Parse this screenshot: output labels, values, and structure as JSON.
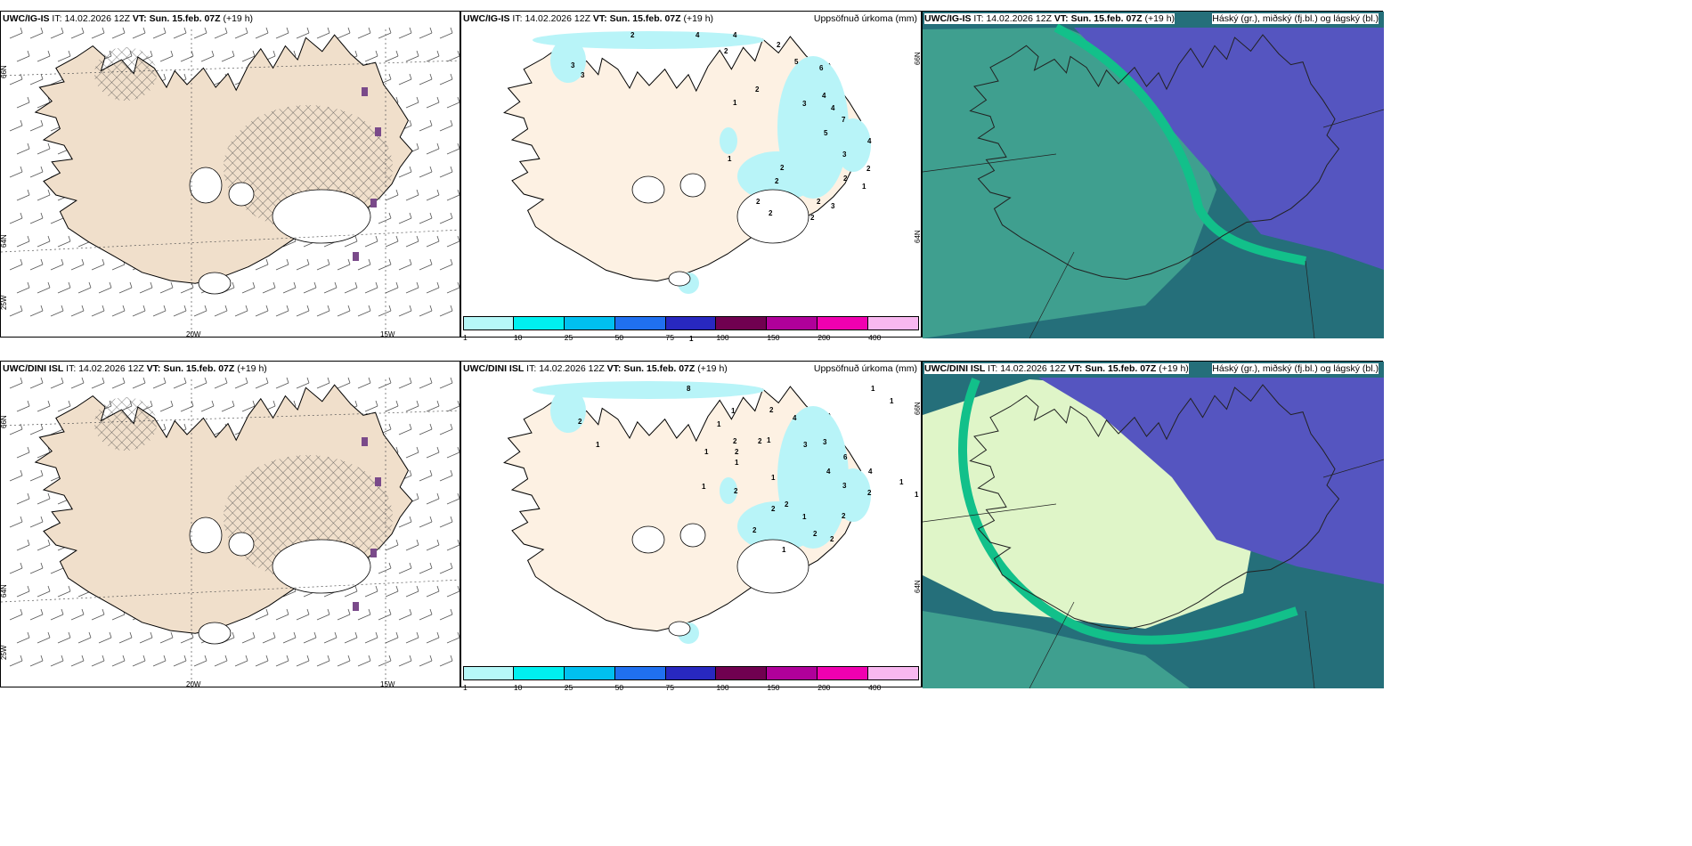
{
  "colors": {
    "land": "#f0dfcb",
    "land_light": "#fdf1e3",
    "snow_cyan": "#b8f4f8",
    "sea_teal": "#3f9f8f",
    "sea_dark": "#256f7a",
    "cloud_purple": "#5555c0",
    "cloud_green": "#12c08a",
    "cloud_light": "#dff5c8"
  },
  "rows": [
    {
      "model": "UWC/IG-IS",
      "it_label": "IT:",
      "it": "14.02.2026 12Z",
      "vt_label": "VT:",
      "vt": "Sun. 15.feb. 07Z",
      "lead": "(+19 h)",
      "precip_title": "Uppsöfnuð úrkoma (mm)",
      "cloud_title": "Háský (gr.), miðský (fj.bl.) og lágský (bl.)",
      "wind_lon_labels": [
        "20W",
        "15W"
      ],
      "wind_lat_labels": [
        "66N",
        "64N",
        "25W"
      ],
      "precip_lat_labels": [
        "66N",
        "64N"
      ],
      "precip_numbers": [
        {
          "t": "2",
          "x": 190,
          "y": 29
        },
        {
          "t": "4",
          "x": 263,
          "y": 29
        },
        {
          "t": "4",
          "x": 305,
          "y": 29
        },
        {
          "t": "2",
          "x": 354,
          "y": 40
        },
        {
          "t": "2",
          "x": 295,
          "y": 47
        },
        {
          "t": "5",
          "x": 374,
          "y": 59
        },
        {
          "t": "6",
          "x": 402,
          "y": 66
        },
        {
          "t": "3",
          "x": 123,
          "y": 63
        },
        {
          "t": "3",
          "x": 134,
          "y": 74
        },
        {
          "t": "1",
          "x": 305,
          "y": 105
        },
        {
          "t": "2",
          "x": 330,
          "y": 90
        },
        {
          "t": "3",
          "x": 383,
          "y": 106
        },
        {
          "t": "4",
          "x": 405,
          "y": 97
        },
        {
          "t": "4",
          "x": 415,
          "y": 111
        },
        {
          "t": "7",
          "x": 427,
          "y": 124
        },
        {
          "t": "5",
          "x": 407,
          "y": 139
        },
        {
          "t": "3",
          "x": 428,
          "y": 163
        },
        {
          "t": "4",
          "x": 456,
          "y": 148
        },
        {
          "t": "2",
          "x": 455,
          "y": 179
        },
        {
          "t": "2",
          "x": 429,
          "y": 190
        },
        {
          "t": "1",
          "x": 450,
          "y": 199
        },
        {
          "t": "1",
          "x": 299,
          "y": 168
        },
        {
          "t": "2",
          "x": 358,
          "y": 178
        },
        {
          "t": "2",
          "x": 352,
          "y": 193
        },
        {
          "t": "2",
          "x": 331,
          "y": 216
        },
        {
          "t": "2",
          "x": 345,
          "y": 229
        },
        {
          "t": "2",
          "x": 399,
          "y": 216
        },
        {
          "t": "3",
          "x": 415,
          "y": 221
        },
        {
          "t": "2",
          "x": 392,
          "y": 234
        },
        {
          "t": "1",
          "x": 256,
          "y": 370
        }
      ]
    },
    {
      "model": "UWC/DINI ISL",
      "it_label": "IT:",
      "it": "14.02.2026 12Z",
      "vt_label": "VT:",
      "vt": "Sun. 15.feb. 07Z",
      "lead": "(+19 h)",
      "precip_title": "Uppsöfnuð úrkoma (mm)",
      "cloud_title": "Háský (gr.), miðský (fj.bl.) og lágský (bl.)",
      "wind_lon_labels": [
        "20W",
        "15W"
      ],
      "wind_lat_labels": [
        "66N",
        "64N",
        "25W"
      ],
      "precip_lat_labels": [
        "66N",
        "64N"
      ],
      "precip_numbers": [
        {
          "t": "8",
          "x": 253,
          "y": 33
        },
        {
          "t": "1",
          "x": 460,
          "y": 33
        },
        {
          "t": "1",
          "x": 481,
          "y": 47
        },
        {
          "t": "1",
          "x": 303,
          "y": 58
        },
        {
          "t": "2",
          "x": 346,
          "y": 57
        },
        {
          "t": "4",
          "x": 372,
          "y": 66
        },
        {
          "t": "1",
          "x": 287,
          "y": 73
        },
        {
          "t": "2",
          "x": 131,
          "y": 70
        },
        {
          "t": "1",
          "x": 151,
          "y": 96
        },
        {
          "t": "3",
          "x": 384,
          "y": 96
        },
        {
          "t": "3",
          "x": 406,
          "y": 93
        },
        {
          "t": "2",
          "x": 305,
          "y": 92
        },
        {
          "t": "2",
          "x": 333,
          "y": 92
        },
        {
          "t": "1",
          "x": 343,
          "y": 91
        },
        {
          "t": "6",
          "x": 429,
          "y": 110
        },
        {
          "t": "2",
          "x": 307,
          "y": 104
        },
        {
          "t": "1",
          "x": 273,
          "y": 104
        },
        {
          "t": "1",
          "x": 307,
          "y": 116
        },
        {
          "t": "4",
          "x": 410,
          "y": 126
        },
        {
          "t": "4",
          "x": 457,
          "y": 126
        },
        {
          "t": "1",
          "x": 492,
          "y": 138
        },
        {
          "t": "1",
          "x": 348,
          "y": 133
        },
        {
          "t": "3",
          "x": 428,
          "y": 142
        },
        {
          "t": "1",
          "x": 509,
          "y": 152
        },
        {
          "t": "2",
          "x": 456,
          "y": 150
        },
        {
          "t": "1",
          "x": 270,
          "y": 143
        },
        {
          "t": "2",
          "x": 306,
          "y": 148
        },
        {
          "t": "2",
          "x": 363,
          "y": 163
        },
        {
          "t": "2",
          "x": 348,
          "y": 168
        },
        {
          "t": "1",
          "x": 383,
          "y": 177
        },
        {
          "t": "2",
          "x": 427,
          "y": 176
        },
        {
          "t": "2",
          "x": 327,
          "y": 192
        },
        {
          "t": "2",
          "x": 395,
          "y": 196
        },
        {
          "t": "2",
          "x": 414,
          "y": 202
        },
        {
          "t": "1",
          "x": 360,
          "y": 214
        }
      ]
    }
  ],
  "colorbar": {
    "ticks": [
      "1",
      "10",
      "25",
      "50",
      "75",
      "100",
      "150",
      "200",
      "400"
    ],
    "colors": [
      "#b6f8f8",
      "#00f0f0",
      "#00c0f0",
      "#2070f0",
      "#2828c0",
      "#700050",
      "#b0009a",
      "#f000b0",
      "#f8b8f0"
    ]
  }
}
